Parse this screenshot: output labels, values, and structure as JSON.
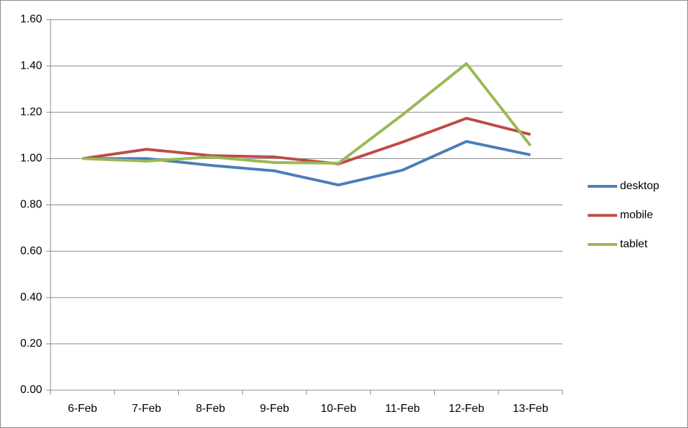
{
  "chart_data": {
    "type": "line",
    "categories": [
      "6-Feb",
      "7-Feb",
      "8-Feb",
      "9-Feb",
      "10-Feb",
      "11-Feb",
      "12-Feb",
      "13-Feb"
    ],
    "series": [
      {
        "name": "desktop",
        "color": "#4a7ebb",
        "values": [
          1.0,
          1.0,
          0.971,
          0.947,
          0.886,
          0.95,
          1.074,
          1.016
        ]
      },
      {
        "name": "mobile",
        "color": "#be4b48",
        "values": [
          1.0,
          1.04,
          1.013,
          1.007,
          0.977,
          1.071,
          1.174,
          1.104
        ]
      },
      {
        "name": "tablet",
        "color": "#98b954",
        "values": [
          1.0,
          0.989,
          1.007,
          0.983,
          0.98,
          1.189,
          1.41,
          1.056
        ]
      }
    ],
    "ylim": [
      0,
      1.6
    ],
    "yticks": [
      {
        "value": 0,
        "label": "0.00"
      },
      {
        "value": 0.2,
        "label": "0.20"
      },
      {
        "value": 0.4,
        "label": "0.40"
      },
      {
        "value": 0.6,
        "label": "0.60"
      },
      {
        "value": 0.8,
        "label": "0.80"
      },
      {
        "value": 1.0,
        "label": "1.00"
      },
      {
        "value": 1.2,
        "label": "1.20"
      },
      {
        "value": 1.4,
        "label": "1.40"
      },
      {
        "value": 1.6,
        "label": "1.60"
      }
    ],
    "grid": true,
    "legend": "right"
  }
}
